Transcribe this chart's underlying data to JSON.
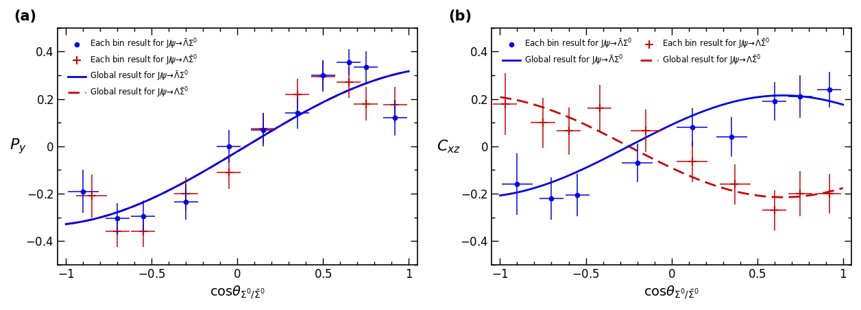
{
  "panel_a": {
    "label": "(a)",
    "ylabel": "P_y",
    "ylim": [
      -0.5,
      0.5
    ],
    "xlim": [
      -1.05,
      1.05
    ],
    "blue_x": [
      -0.9,
      -0.7,
      -0.55,
      -0.3,
      -0.05,
      0.15,
      0.35,
      0.5,
      0.65,
      0.75,
      0.92
    ],
    "blue_y": [
      -0.19,
      -0.305,
      -0.295,
      -0.235,
      0.0,
      0.07,
      0.14,
      0.3,
      0.355,
      0.335,
      0.12
    ],
    "blue_yerr": [
      0.09,
      0.065,
      0.065,
      0.075,
      0.07,
      0.07,
      0.065,
      0.065,
      0.055,
      0.065,
      0.075
    ],
    "blue_xerr": [
      0.09,
      0.07,
      0.07,
      0.07,
      0.07,
      0.07,
      0.07,
      0.07,
      0.07,
      0.07,
      0.07
    ],
    "red_x": [
      -0.85,
      -0.7,
      -0.55,
      -0.3,
      -0.05,
      0.15,
      0.35,
      0.5,
      0.65,
      0.75,
      0.92
    ],
    "red_y": [
      -0.21,
      -0.36,
      -0.36,
      -0.2,
      -0.11,
      0.075,
      0.22,
      0.295,
      0.27,
      0.18,
      0.175
    ],
    "red_yerr": [
      0.09,
      0.065,
      0.065,
      0.07,
      0.07,
      0.065,
      0.065,
      0.065,
      0.065,
      0.07,
      0.075
    ],
    "red_xerr": [
      0.09,
      0.07,
      0.07,
      0.07,
      0.07,
      0.07,
      0.07,
      0.07,
      0.07,
      0.07,
      0.07
    ],
    "amp": 0.335,
    "omega": 1.309,
    "phase": 0.05
  },
  "panel_b": {
    "label": "(b)",
    "ylabel": "C_xz",
    "ylim": [
      -0.5,
      0.5
    ],
    "xlim": [
      -1.05,
      1.05
    ],
    "blue_x": [
      -0.9,
      -0.7,
      -0.55,
      -0.2,
      0.12,
      0.35,
      0.6,
      0.75,
      0.92
    ],
    "blue_y": [
      -0.16,
      -0.22,
      -0.205,
      -0.07,
      0.08,
      0.04,
      0.19,
      0.21,
      0.24
    ],
    "blue_yerr": [
      0.13,
      0.09,
      0.09,
      0.08,
      0.08,
      0.085,
      0.08,
      0.09,
      0.075
    ],
    "blue_xerr": [
      0.09,
      0.07,
      0.07,
      0.09,
      0.09,
      0.09,
      0.07,
      0.07,
      0.07
    ],
    "red_x": [
      -0.97,
      -0.75,
      -0.6,
      -0.42,
      -0.15,
      0.12,
      0.37,
      0.6,
      0.75,
      0.92
    ],
    "red_y": [
      0.18,
      0.1,
      0.065,
      0.16,
      0.065,
      -0.065,
      -0.16,
      -0.27,
      -0.2,
      -0.2
    ],
    "red_yerr": [
      0.13,
      0.105,
      0.1,
      0.1,
      0.09,
      0.085,
      0.085,
      0.085,
      0.095,
      0.085
    ],
    "red_xerr": [
      0.07,
      0.07,
      0.07,
      0.07,
      0.09,
      0.09,
      0.09,
      0.07,
      0.07,
      0.07
    ],
    "blue_amp": 0.215,
    "blue_omega": 1.745,
    "blue_phase": -0.25,
    "red_amp": -0.215,
    "red_omega": 1.745,
    "red_phase": -0.25
  },
  "blue_color": "#0000ee",
  "red_color": "#cc0000",
  "background": "#ffffff",
  "legend_blue_marker": "Each bin result for J/ψ→Λ̅Σ⁰",
  "legend_red_marker": "Each bin result for J/ψ→ΛΣ̅⁰",
  "legend_blue_line": "Global result for J/ψ→Λ̅Σ⁰",
  "legend_red_line": "Global result for J/ψ→ΛΣ̅⁰"
}
